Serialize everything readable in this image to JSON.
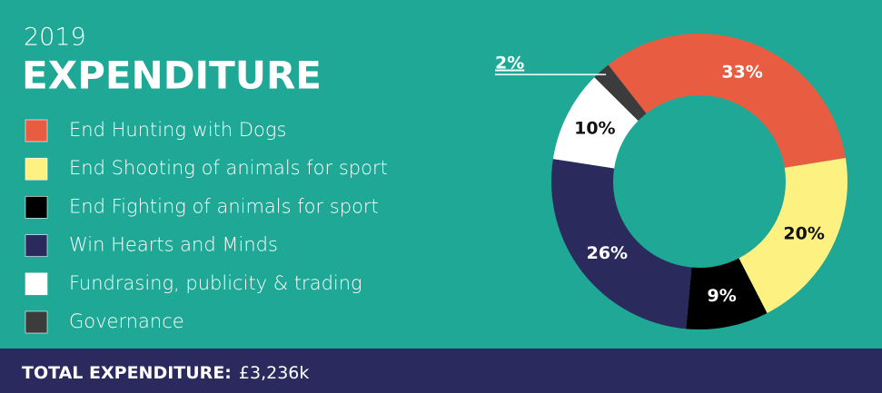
{
  "chart_data": {
    "type": "donut",
    "subtitle": "2019",
    "title": "EXPENDITURE",
    "categories": [
      "End Hunting with Dogs",
      "End Shooting of animals for sport",
      "End Fighting of animals for sport",
      "Win Hearts and Minds",
      "Fundrasing, publicity & trading",
      "Governance"
    ],
    "values": [
      33,
      20,
      9,
      26,
      10,
      2
    ],
    "value_labels": [
      "33%",
      "20%",
      "9%",
      "26%",
      "10%",
      "2%"
    ],
    "colors": [
      "#e85d42",
      "#fdf181",
      "#000000",
      "#2b2a5c",
      "#ffffff",
      "#3c3c3c"
    ],
    "total_label": "TOTAL EXPENDITURE:",
    "total_value": "£3,236k"
  }
}
